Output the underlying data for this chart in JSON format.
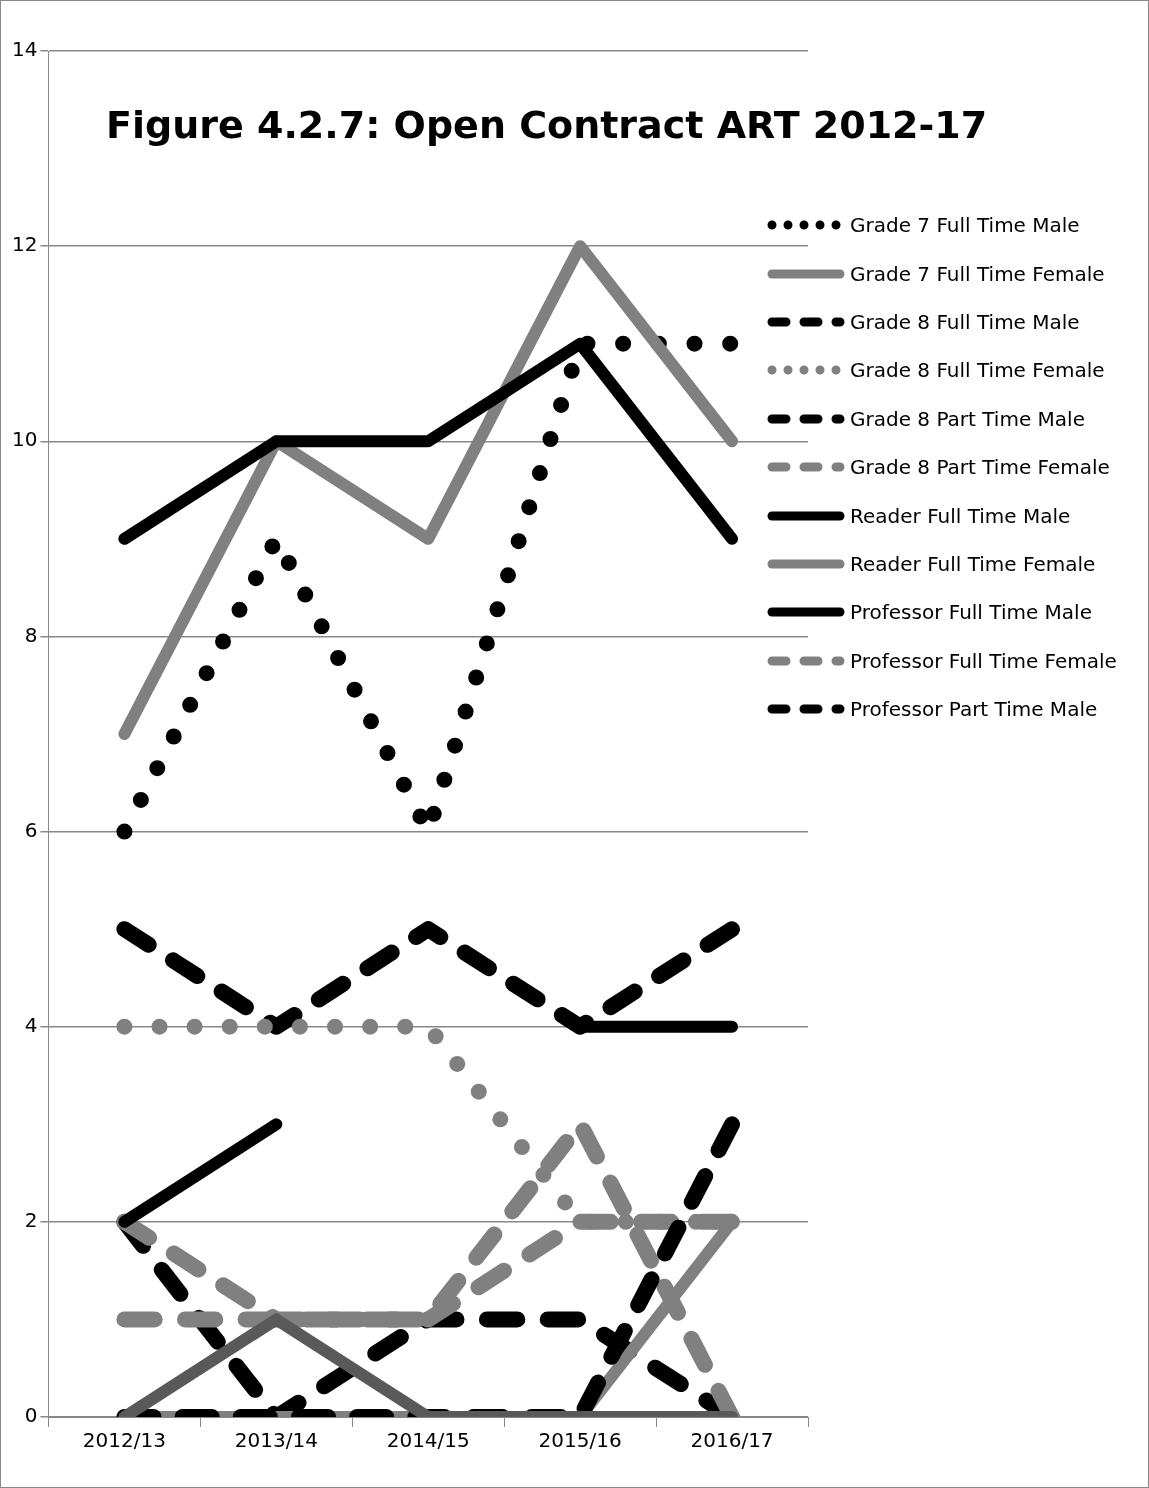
{
  "chart_data": {
    "type": "line",
    "title": "Figure 4.2.7: Open Contract ART 2012-17",
    "categories": [
      "2012/13",
      "2013/14",
      "2014/15",
      "2015/16",
      "2016/17"
    ],
    "series": [
      {
        "name": "Grade 7 Full Time Male",
        "color": "#000000",
        "line_style": "dotted",
        "values": [
          6,
          9,
          6,
          11,
          11
        ]
      },
      {
        "name": "Grade 7 Full Time Female",
        "color": "#808080",
        "line_style": "solid",
        "values": [
          7,
          10,
          9,
          12,
          10
        ]
      },
      {
        "name": "Grade 8 Full Time Male",
        "color": "#000000",
        "line_style": "dashed",
        "values": [
          5,
          4,
          5,
          4,
          5
        ]
      },
      {
        "name": "Grade 8 Full Time Female",
        "color": "#808080",
        "line_style": "dotted",
        "values": [
          4,
          4,
          4,
          2,
          2
        ]
      },
      {
        "name": "Grade 8 Part Time Male",
        "color": "#000000",
        "line_style": "dashed",
        "values": [
          2,
          0,
          1,
          1,
          0
        ]
      },
      {
        "name": "Grade 8 Part Time Female",
        "color": "#808080",
        "line_style": "dashed",
        "values": [
          2,
          1,
          1,
          3,
          0
        ]
      },
      {
        "name": "Reader Full Time Male",
        "color": "#000000",
        "line_style": "solid",
        "values": [
          9,
          10,
          10,
          11,
          9
        ]
      },
      {
        "name": "Reader Full Time Female",
        "color": "#808080",
        "line_style": "solid",
        "values": [
          0,
          0,
          0,
          0,
          2
        ]
      },
      {
        "name": "Professor Full Time Male",
        "color": "#000000",
        "line_style": "solid",
        "values": [
          2,
          3,
          null,
          4,
          4
        ]
      },
      {
        "name": "Professor Full Time Female",
        "color": "#808080",
        "line_style": "dashed",
        "values": [
          1,
          1,
          1,
          2,
          2
        ]
      },
      {
        "name": "Professor Part Time Male",
        "color": "#000000",
        "line_style": "dashed",
        "values": [
          0,
          0,
          0,
          0,
          3
        ]
      },
      {
        "color": "#595959",
        "line_style": "solid",
        "values": [
          0,
          1,
          0,
          0,
          0
        ]
      }
    ],
    "ylim": [
      0,
      14
    ],
    "yticks": [
      0,
      2,
      4,
      6,
      8,
      10,
      12,
      14
    ],
    "grid": "y",
    "legend": "right",
    "marker": "none"
  }
}
